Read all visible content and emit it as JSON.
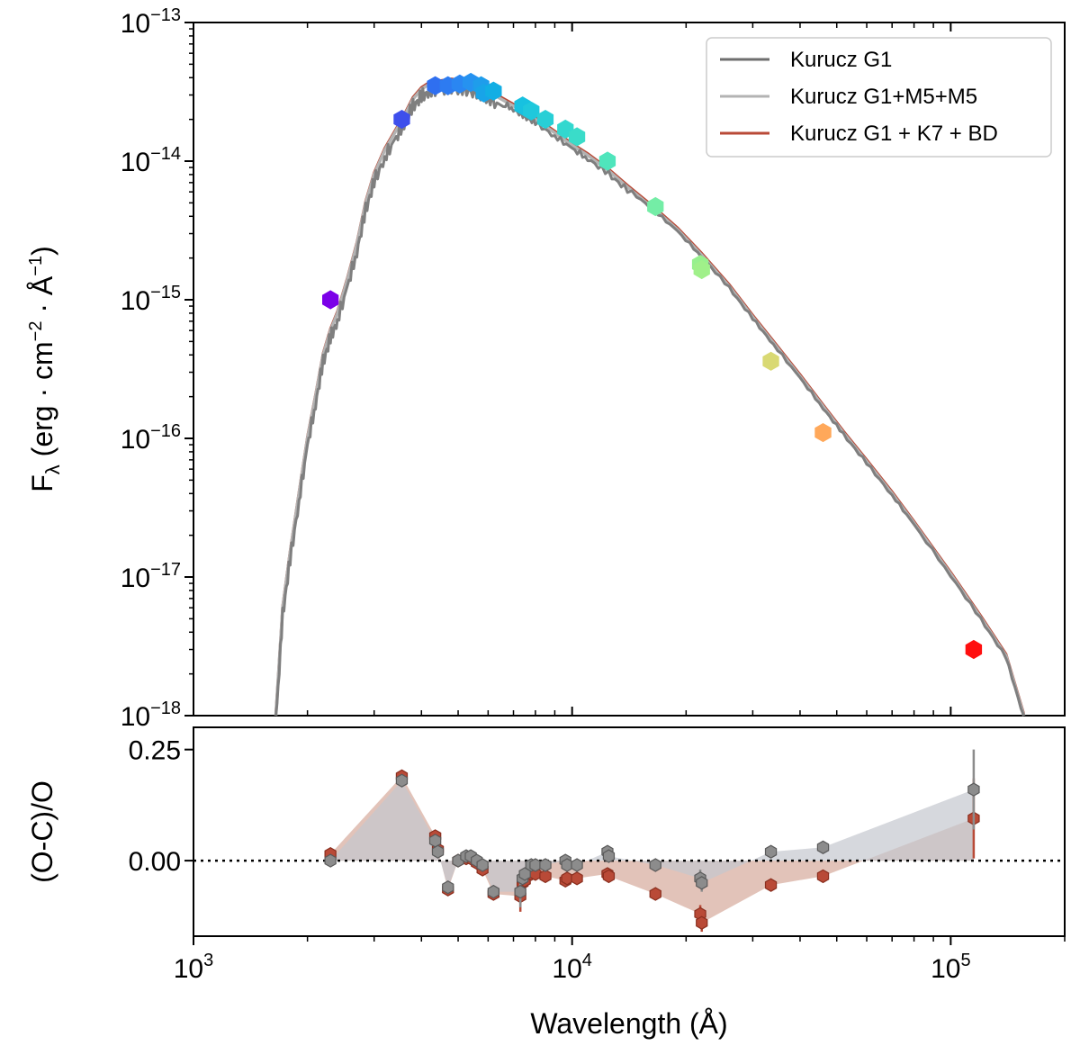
{
  "chart_data": [
    {
      "type": "line",
      "panel": "sed",
      "xscale": "log",
      "yscale": "log",
      "xlim": [
        1000,
        200000
      ],
      "ylim": [
        1e-18,
        1e-13
      ],
      "ylabel_main": "F",
      "ylabel_sub": "λ",
      "ylabel_rest": " (erg · cm",
      "ylabel_exp1": "−2",
      "ylabel_mid": " · Å",
      "ylabel_exp2": "−1",
      "ylabel_end": ")",
      "y_ticks": [
        {
          "value": 1e-13,
          "base": "10",
          "exp": "−13"
        },
        {
          "value": 1e-14,
          "base": "10",
          "exp": "−14"
        },
        {
          "value": 1e-15,
          "base": "10",
          "exp": "−15"
        },
        {
          "value": 1e-16,
          "base": "10",
          "exp": "−16"
        },
        {
          "value": 1e-17,
          "base": "10",
          "exp": "−17"
        },
        {
          "value": 1e-18,
          "base": "10",
          "exp": "−18"
        }
      ],
      "legend_position": "top-right",
      "series": [
        {
          "name": "Kurucz G1",
          "color": "#6e6e6e"
        },
        {
          "name": "Kurucz G1+M5+M5",
          "color": "#b3b3b3"
        },
        {
          "name": "Kurucz G1 + K7 + BD",
          "color": "#b94a37"
        }
      ],
      "model_curve": {
        "color": "#7f7f7f",
        "wavelength": [
          1650,
          1720,
          1800,
          1900,
          2000,
          2100,
          2200,
          2300,
          2400,
          2550,
          2700,
          2850,
          3000,
          3200,
          3400,
          3600,
          3800,
          4000,
          4200,
          4500,
          4800,
          5200,
          5600,
          6000,
          6500,
          7000,
          7500,
          8000,
          9000,
          10000,
          11000,
          12500,
          14000,
          16500,
          19000,
          22000,
          26000,
          30000,
          34000,
          40000,
          46000,
          52000,
          60000,
          70000,
          80000,
          100000,
          120000,
          140000,
          156000
        ],
        "flux": [
          1e-18,
          6e-18,
          1.5e-17,
          4e-17,
          1e-16,
          2e-16,
          4e-16,
          6e-16,
          8e-16,
          1.4e-15,
          2.5e-15,
          5e-15,
          8e-15,
          1.2e-14,
          1.6e-14,
          2.1e-14,
          2.8e-14,
          3.3e-14,
          3.6e-14,
          3.7e-14,
          3.8e-14,
          3.7e-14,
          3.5e-14,
          3.2e-14,
          2.8e-14,
          2.5e-14,
          2.2e-14,
          2e-14,
          1.6e-14,
          1.3e-14,
          1.1e-14,
          8.5e-15,
          6.5e-15,
          4.5e-15,
          3.2e-15,
          2.1e-15,
          1.25e-15,
          7.5e-16,
          4.9e-16,
          2.8e-16,
          1.7e-16,
          1.1e-16,
          6.8e-17,
          4e-17,
          2.45e-17,
          1.05e-17,
          5.1e-18,
          2.7e-18,
          1e-18
        ]
      },
      "photometry": [
        {
          "wavelength": 2300,
          "flux": 1e-15,
          "color": "#7b00e8"
        },
        {
          "wavelength": 3550,
          "flux": 2e-14,
          "color": "#3e4fec"
        },
        {
          "wavelength": 4350,
          "flux": 3.5e-14,
          "color": "#2f6ff0"
        },
        {
          "wavelength": 4700,
          "flux": 3.5e-14,
          "color": "#2d7bf1"
        },
        {
          "wavelength": 5050,
          "flux": 3.6e-14,
          "color": "#2a86f2"
        },
        {
          "wavelength": 5400,
          "flux": 3.7e-14,
          "color": "#2692f0"
        },
        {
          "wavelength": 5750,
          "flux": 3.5e-14,
          "color": "#1f9deb"
        },
        {
          "wavelength": 5850,
          "flux": 3.1e-14,
          "color": "#18a4e8"
        },
        {
          "wavelength": 6200,
          "flux": 3.2e-14,
          "color": "#12aee4"
        },
        {
          "wavelength": 7400,
          "flux": 2.5e-14,
          "color": "#17c1e0"
        },
        {
          "wavelength": 7800,
          "flux": 2.3e-14,
          "color": "#1fc8dc"
        },
        {
          "wavelength": 8500,
          "flux": 2e-14,
          "color": "#28cfd6"
        },
        {
          "wavelength": 9600,
          "flux": 1.7e-14,
          "color": "#32d8cf"
        },
        {
          "wavelength": 10300,
          "flux": 1.5e-14,
          "color": "#3adcc9"
        },
        {
          "wavelength": 12400,
          "flux": 1e-14,
          "color": "#4fe5bc"
        },
        {
          "wavelength": 16600,
          "flux": 4.7e-15,
          "color": "#74eda6"
        },
        {
          "wavelength": 21800,
          "flux": 1.8e-15,
          "color": "#97f08e"
        },
        {
          "wavelength": 22000,
          "flux": 1.65e-15,
          "color": "#a0f08a"
        },
        {
          "wavelength": 33500,
          "flux": 3.6e-16,
          "color": "#d9d973"
        },
        {
          "wavelength": 46000,
          "flux": 1.1e-16,
          "color": "#ffa85a"
        },
        {
          "wavelength": 115000,
          "flux": 3e-18,
          "color": "#ff0f0f"
        }
      ]
    },
    {
      "type": "scatter",
      "panel": "residuals",
      "xscale": "log",
      "xlim": [
        1000,
        200000
      ],
      "ylim": [
        -0.17,
        0.3
      ],
      "xlabel": "Wavelength (Å)",
      "ylabel": "(O-C)/O",
      "x_ticks": [
        {
          "value": 1000,
          "base": "10",
          "exp": "3"
        },
        {
          "value": 10000,
          "base": "10",
          "exp": "4"
        },
        {
          "value": 100000,
          "base": "10",
          "exp": "5"
        }
      ],
      "y_ticks": [
        {
          "value": 0.25,
          "label": "0.25"
        },
        {
          "value": 0.0,
          "label": "0.00"
        }
      ],
      "reference_line": 0.0,
      "series": [
        {
          "name": "Kurucz G1+M5+M5",
          "color": "#8c8c8c",
          "fill_color": "#c5c8cf",
          "x": [
            2300,
            3550,
            4350,
            4420,
            4700,
            5000,
            5250,
            5400,
            5600,
            5800,
            6200,
            7300,
            7400,
            7500,
            7800,
            8000,
            8500,
            9600,
            9700,
            10300,
            12400,
            12500,
            16600,
            21800,
            22000,
            33500,
            46000,
            115000
          ],
          "y": [
            0.0,
            0.18,
            0.045,
            0.02,
            -0.06,
            0.0,
            0.01,
            0.01,
            0.0,
            -0.01,
            -0.07,
            -0.07,
            -0.04,
            -0.03,
            -0.01,
            -0.01,
            -0.01,
            0.0,
            -0.01,
            -0.01,
            0.02,
            0.01,
            -0.01,
            -0.04,
            -0.05,
            0.02,
            0.03,
            0.16
          ],
          "yerr": [
            0.01,
            0.01,
            0.01,
            0.01,
            0.01,
            0.01,
            0.01,
            0.01,
            0.01,
            0.01,
            0.01,
            0.035,
            0.01,
            0.01,
            0.01,
            0.01,
            0.01,
            0.01,
            0.01,
            0.01,
            0.01,
            0.01,
            0.01,
            0.02,
            0.02,
            0.01,
            0.01,
            0.09
          ]
        },
        {
          "name": "Kurucz G1 + K7 + BD",
          "color": "#b94a37",
          "fill_color": "#d6a99b",
          "x": [
            2300,
            3550,
            4350,
            4420,
            4700,
            5000,
            5250,
            5400,
            5600,
            5800,
            6200,
            7300,
            7400,
            7500,
            7800,
            8000,
            8500,
            9600,
            9700,
            10300,
            12400,
            12500,
            16600,
            21800,
            22000,
            33500,
            46000,
            115000
          ],
          "y": [
            0.015,
            0.19,
            0.055,
            0.025,
            -0.065,
            0.0,
            0.005,
            0.005,
            -0.005,
            -0.02,
            -0.075,
            -0.08,
            -0.05,
            -0.045,
            -0.03,
            -0.03,
            -0.035,
            -0.045,
            -0.04,
            -0.04,
            -0.03,
            -0.035,
            -0.075,
            -0.12,
            -0.14,
            -0.055,
            -0.035,
            0.095
          ],
          "yerr": [
            0.01,
            0.01,
            0.01,
            0.01,
            0.01,
            0.01,
            0.01,
            0.01,
            0.01,
            0.01,
            0.01,
            0.035,
            0.01,
            0.01,
            0.01,
            0.01,
            0.01,
            0.01,
            0.01,
            0.01,
            0.01,
            0.01,
            0.01,
            0.02,
            0.02,
            0.01,
            0.01,
            0.09
          ]
        }
      ]
    }
  ]
}
